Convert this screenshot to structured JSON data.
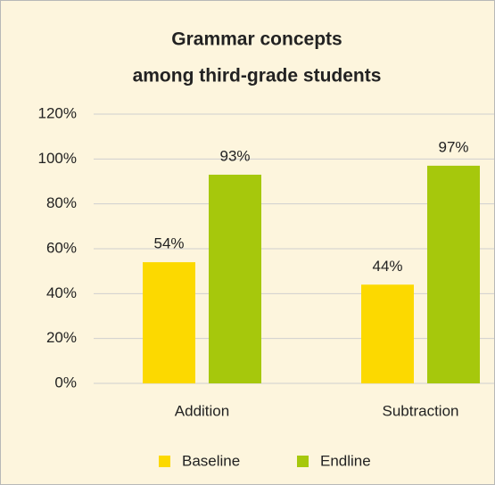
{
  "chart_data": {
    "type": "bar",
    "title": [
      "Grammar concepts",
      "among third-grade students"
    ],
    "categories": [
      "Addition",
      "Subtraction"
    ],
    "series": [
      {
        "name": "Baseline",
        "color": "#fcd900",
        "values": [
          54,
          44
        ],
        "value_labels": [
          "54%",
          "44%"
        ]
      },
      {
        "name": "Endline",
        "color": "#a6c80c",
        "values": [
          93,
          97
        ],
        "value_labels": [
          "93%",
          "97%"
        ]
      }
    ],
    "ylim": [
      0,
      120
    ],
    "yticks": [
      {
        "value": 0,
        "label": "0%"
      },
      {
        "value": 20,
        "label": "20%"
      },
      {
        "value": 40,
        "label": "40%"
      },
      {
        "value": 60,
        "label": "60%"
      },
      {
        "value": 80,
        "label": "80%"
      },
      {
        "value": 100,
        "label": "100%"
      },
      {
        "value": 120,
        "label": "120%"
      }
    ],
    "grid": true,
    "legend": "bottom"
  }
}
